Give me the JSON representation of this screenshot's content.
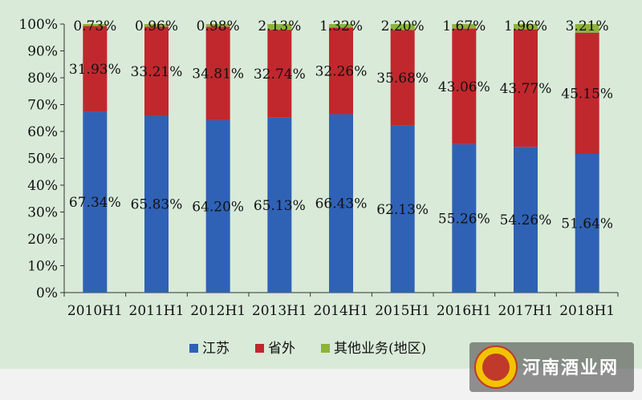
{
  "chart_data": {
    "type": "bar",
    "stacked": true,
    "percent": true,
    "categories": [
      "2010H1",
      "2011H1",
      "2012H1",
      "2013H1",
      "2014H1",
      "2015H1",
      "2016H1",
      "2017H1",
      "2018H1"
    ],
    "series": [
      {
        "name": "江苏",
        "color": "#2f62b5",
        "values": [
          67.34,
          65.83,
          64.2,
          65.13,
          66.43,
          62.13,
          55.26,
          54.26,
          51.64
        ],
        "labels": [
          "67.34%",
          "65.83%",
          "64.20%",
          "65.13%",
          "66.43%",
          "62.13%",
          "55.26%",
          "54.26%",
          "51.64%"
        ]
      },
      {
        "name": "省外",
        "color": "#c0282d",
        "values": [
          31.93,
          33.21,
          34.81,
          32.74,
          32.26,
          35.68,
          43.06,
          43.77,
          45.15
        ],
        "labels": [
          "31.93%",
          "33.21%",
          "34.81%",
          "32.74%",
          "32.26%",
          "35.68%",
          "43.06%",
          "43.77%",
          "45.15%"
        ]
      },
      {
        "name": "其他业务(地区)",
        "color": "#8db33a",
        "values": [
          0.73,
          0.96,
          0.98,
          2.13,
          1.32,
          2.2,
          1.67,
          1.96,
          3.21
        ],
        "labels": [
          "0.73%",
          "0.96%",
          "0.98%",
          "2.13%",
          "1.32%",
          "2.20%",
          "1.67%",
          "1.96%",
          "3.21%"
        ]
      }
    ],
    "y_ticks": [
      "0%",
      "10%",
      "20%",
      "30%",
      "40%",
      "50%",
      "60%",
      "70%",
      "80%",
      "90%",
      "100%"
    ],
    "ylim": [
      0,
      100
    ],
    "grid": false,
    "legend_position": "bottom"
  },
  "watermark": {
    "text": "河南酒业网",
    "logo": "henan-jiuye-seal"
  }
}
